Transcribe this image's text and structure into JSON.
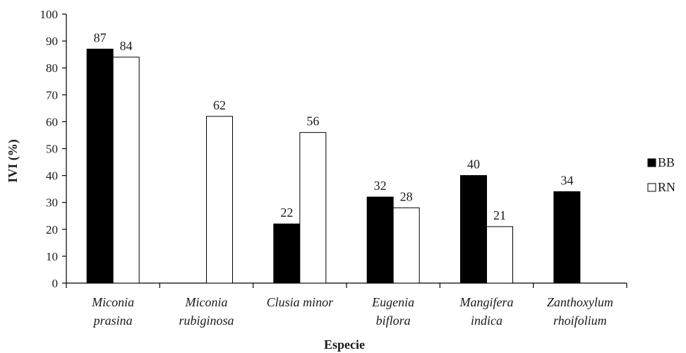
{
  "chart_data": {
    "type": "bar",
    "title": "",
    "xlabel": "Especie",
    "ylabel": "IVI (%)",
    "ylim": [
      0,
      100
    ],
    "ytick_step": 10,
    "grid": false,
    "legend_position": "right",
    "categories": [
      [
        "Miconia",
        "prasina"
      ],
      [
        "Miconia",
        "rubiginosa"
      ],
      [
        "Clusia minor"
      ],
      [
        "Eugenia",
        "biflora"
      ],
      [
        "Mangifera",
        "indica"
      ],
      [
        "Zanthoxylum",
        "rhoifolium"
      ]
    ],
    "series": [
      {
        "name": "BB",
        "color": "#000000",
        "values": [
          87,
          null,
          22,
          32,
          40,
          34
        ]
      },
      {
        "name": "RN",
        "color": "#ffffff",
        "values": [
          84,
          62,
          56,
          28,
          21,
          null
        ]
      }
    ]
  }
}
